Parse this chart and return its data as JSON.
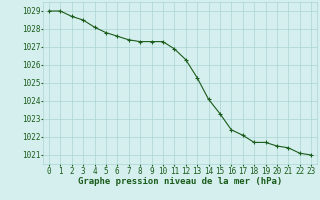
{
  "x": [
    0,
    1,
    2,
    3,
    4,
    5,
    6,
    7,
    8,
    9,
    10,
    11,
    12,
    13,
    14,
    15,
    16,
    17,
    18,
    19,
    20,
    21,
    22,
    23
  ],
  "y": [
    1029.0,
    1029.0,
    1028.7,
    1028.5,
    1028.1,
    1027.8,
    1027.6,
    1027.4,
    1027.3,
    1027.3,
    1027.3,
    1026.9,
    1026.3,
    1025.3,
    1024.1,
    1023.3,
    1022.4,
    1022.1,
    1021.7,
    1021.7,
    1021.5,
    1021.4,
    1021.1,
    1021.0
  ],
  "line_color": "#1a5c1a",
  "marker": "+",
  "marker_size": 3,
  "marker_linewidth": 0.8,
  "background_color": "#d5efef",
  "grid_color": "#aad4d4",
  "ylabel_ticks": [
    1021,
    1022,
    1023,
    1024,
    1025,
    1026,
    1027,
    1028,
    1029
  ],
  "xlabel_ticks": [
    0,
    1,
    2,
    3,
    4,
    5,
    6,
    7,
    8,
    9,
    10,
    11,
    12,
    13,
    14,
    15,
    16,
    17,
    18,
    19,
    20,
    21,
    22,
    23
  ],
  "xlabel": "Graphe pression niveau de la mer (hPa)",
  "ylim": [
    1020.5,
    1029.5
  ],
  "xlim": [
    -0.5,
    23.5
  ],
  "tick_color": "#1a5c1a",
  "label_color": "#1a5c1a",
  "xlabel_fontsize": 6.5,
  "tick_fontsize": 5.5,
  "linewidth": 0.8
}
